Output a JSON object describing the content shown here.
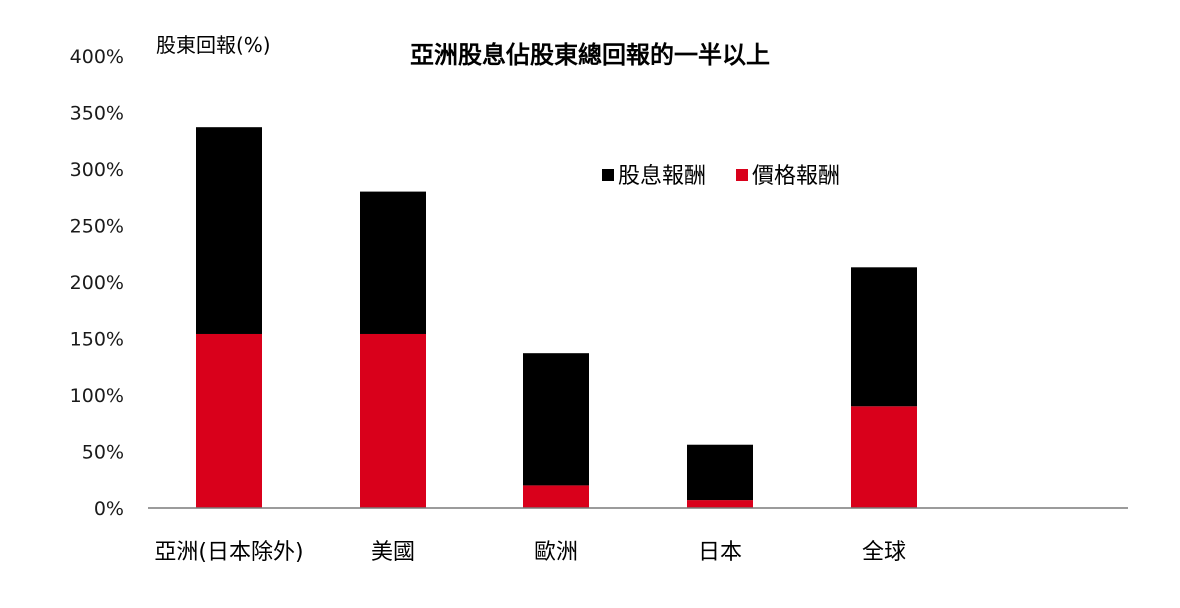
{
  "chart_data": {
    "type": "bar",
    "stacked": true,
    "title": "亞洲股息佔股東總回報的一半以上",
    "ylabel": "股東回報(%)",
    "xlabel": "",
    "ylim": [
      0,
      400
    ],
    "yticks": [
      0,
      50,
      100,
      150,
      200,
      250,
      300,
      350,
      400
    ],
    "ytick_labels": [
      "0%",
      "50%",
      "100%",
      "150%",
      "200%",
      "250%",
      "300%",
      "350%",
      "400%"
    ],
    "categories": [
      "亞洲(日本除外)",
      "美國",
      "歐洲",
      "日本",
      "全球"
    ],
    "series": [
      {
        "name": "價格報酬",
        "color": "#d9001b",
        "values": [
          154,
          154,
          20,
          7,
          90
        ]
      },
      {
        "name": "股息報酬",
        "color": "#000000",
        "values": [
          183,
          126,
          117,
          49,
          123
        ]
      }
    ],
    "legend": {
      "placement": "top-center",
      "order": [
        "股息報酬",
        "價格報酬"
      ]
    },
    "grid": false
  }
}
